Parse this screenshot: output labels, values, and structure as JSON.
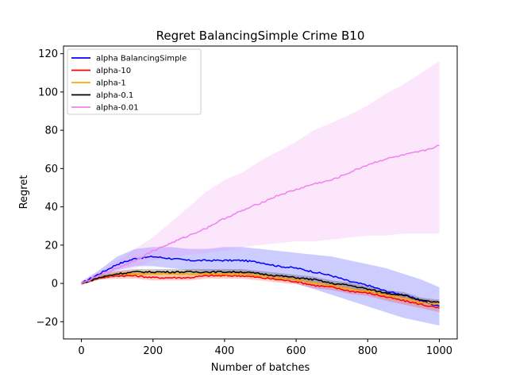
{
  "chart_data": {
    "type": "line",
    "title": "Regret BalancingSimple Crime B10",
    "xlabel": "Number of batches",
    "ylabel": "Regret",
    "xlim": [
      -50,
      1050
    ],
    "ylim": [
      -29,
      124
    ],
    "xticks": [
      0,
      200,
      400,
      600,
      800,
      1000
    ],
    "yticks": [
      -20,
      0,
      20,
      40,
      60,
      80,
      100,
      120
    ],
    "grid": false,
    "legend_position": "top-left",
    "series": [
      {
        "name": "alpha BalancingSimple",
        "color": "#0000ff",
        "x": [
          0,
          50,
          100,
          150,
          200,
          250,
          300,
          350,
          400,
          450,
          500,
          550,
          600,
          650,
          700,
          750,
          800,
          850,
          900,
          950,
          1000
        ],
        "values": [
          0,
          5,
          10,
          13,
          14,
          13,
          12,
          12,
          12,
          12,
          11,
          9,
          8,
          6,
          4,
          1,
          -1,
          -4,
          -6,
          -9,
          -12
        ],
        "band_upper": [
          1,
          7,
          14,
          18,
          19,
          19,
          18,
          18,
          19,
          19,
          18,
          17,
          16,
          15,
          14,
          12,
          10,
          8,
          5,
          2,
          -2
        ],
        "band_lower": [
          -1,
          3,
          7,
          9,
          9,
          8,
          7,
          6,
          6,
          5,
          4,
          2,
          0,
          -3,
          -6,
          -9,
          -12,
          -15,
          -18,
          -20,
          -22
        ]
      },
      {
        "name": "alpha-10",
        "color": "#ff0000",
        "x": [
          0,
          50,
          100,
          150,
          200,
          250,
          300,
          350,
          400,
          450,
          500,
          550,
          600,
          650,
          700,
          750,
          800,
          850,
          900,
          950,
          1000
        ],
        "values": [
          0,
          3,
          4,
          4,
          3,
          3,
          3,
          4,
          4,
          4,
          3,
          2,
          1,
          -1,
          -2,
          -4,
          -5,
          -7,
          -9,
          -11,
          -13
        ],
        "band_upper": [
          0.5,
          4,
          5.5,
          5.5,
          4.5,
          4.5,
          4.5,
          5.5,
          5.5,
          5.5,
          4.5,
          3.5,
          2.5,
          0.5,
          -0.5,
          -2.5,
          -3.5,
          -5,
          -7,
          -9,
          -11
        ],
        "band_lower": [
          -0.5,
          2,
          2.5,
          2.5,
          1.5,
          1.5,
          1.5,
          2.5,
          2.5,
          2.5,
          1.5,
          0.5,
          -0.5,
          -2.5,
          -3.5,
          -5.5,
          -6.5,
          -9,
          -11,
          -13,
          -15
        ]
      },
      {
        "name": "alpha-1",
        "color": "#ffa500",
        "x": [
          0,
          50,
          100,
          150,
          200,
          250,
          300,
          350,
          400,
          450,
          500,
          550,
          600,
          650,
          700,
          750,
          800,
          850,
          900,
          950,
          1000
        ],
        "values": [
          0,
          3,
          5,
          5,
          5,
          5,
          5,
          5,
          5,
          5,
          4,
          3,
          2,
          0,
          -1,
          -3,
          -4,
          -6,
          -8,
          -10,
          -11
        ],
        "band_upper": [
          0.5,
          4,
          6.5,
          6.5,
          6.5,
          6.5,
          6.5,
          6.5,
          6.5,
          6.5,
          5.5,
          4.5,
          3.5,
          1.5,
          0.5,
          -1.5,
          -2.5,
          -4,
          -6,
          -8,
          -9
        ],
        "band_lower": [
          -0.5,
          2,
          3.5,
          3.5,
          3.5,
          3.5,
          3.5,
          3.5,
          3.5,
          3.5,
          2.5,
          1.5,
          0.5,
          -1.5,
          -2.5,
          -4.5,
          -5.5,
          -8,
          -10,
          -12,
          -13
        ]
      },
      {
        "name": "alpha-0.1",
        "color": "#000000",
        "x": [
          0,
          50,
          100,
          150,
          200,
          250,
          300,
          350,
          400,
          450,
          500,
          550,
          600,
          650,
          700,
          750,
          800,
          850,
          900,
          950,
          1000
        ],
        "values": [
          0,
          3,
          5,
          6,
          6,
          6,
          6,
          6,
          6,
          6,
          5,
          4,
          3,
          2,
          0,
          -1,
          -3,
          -5,
          -6,
          -9,
          -10
        ],
        "band_upper": [
          0.5,
          4,
          6.5,
          7.5,
          7.5,
          7.5,
          7.5,
          7.5,
          7.5,
          7.5,
          6.5,
          5.5,
          4.5,
          3.5,
          1.5,
          0.5,
          -1.5,
          -3.5,
          -4.5,
          -7.5,
          -8.5
        ],
        "band_lower": [
          -0.5,
          2,
          3.5,
          4.5,
          4.5,
          4.5,
          4.5,
          4.5,
          4.5,
          4.5,
          3.5,
          2.5,
          1.5,
          0.5,
          -1.5,
          -2.5,
          -4.5,
          -6.5,
          -7.5,
          -10.5,
          -11.5
        ]
      },
      {
        "name": "alpha-0.01",
        "color": "#ee82ee",
        "x": [
          0,
          50,
          100,
          150,
          200,
          250,
          300,
          350,
          400,
          450,
          500,
          550,
          600,
          650,
          700,
          750,
          800,
          850,
          900,
          950,
          1000
        ],
        "values": [
          0,
          4,
          8,
          12,
          17,
          21,
          25,
          29,
          34,
          38,
          42,
          46,
          49,
          52,
          54,
          58,
          62,
          65,
          67,
          69,
          72
        ],
        "band_upper": [
          1,
          6,
          12,
          18,
          24,
          32,
          40,
          48,
          54,
          58,
          64,
          69,
          74,
          80,
          84,
          88,
          93,
          99,
          104,
          110,
          116
        ],
        "band_lower": [
          -1,
          2,
          5,
          8,
          12,
          14,
          15,
          16,
          17,
          19,
          20,
          21,
          22,
          22,
          23,
          24,
          25,
          25,
          26,
          26,
          26
        ]
      }
    ]
  }
}
